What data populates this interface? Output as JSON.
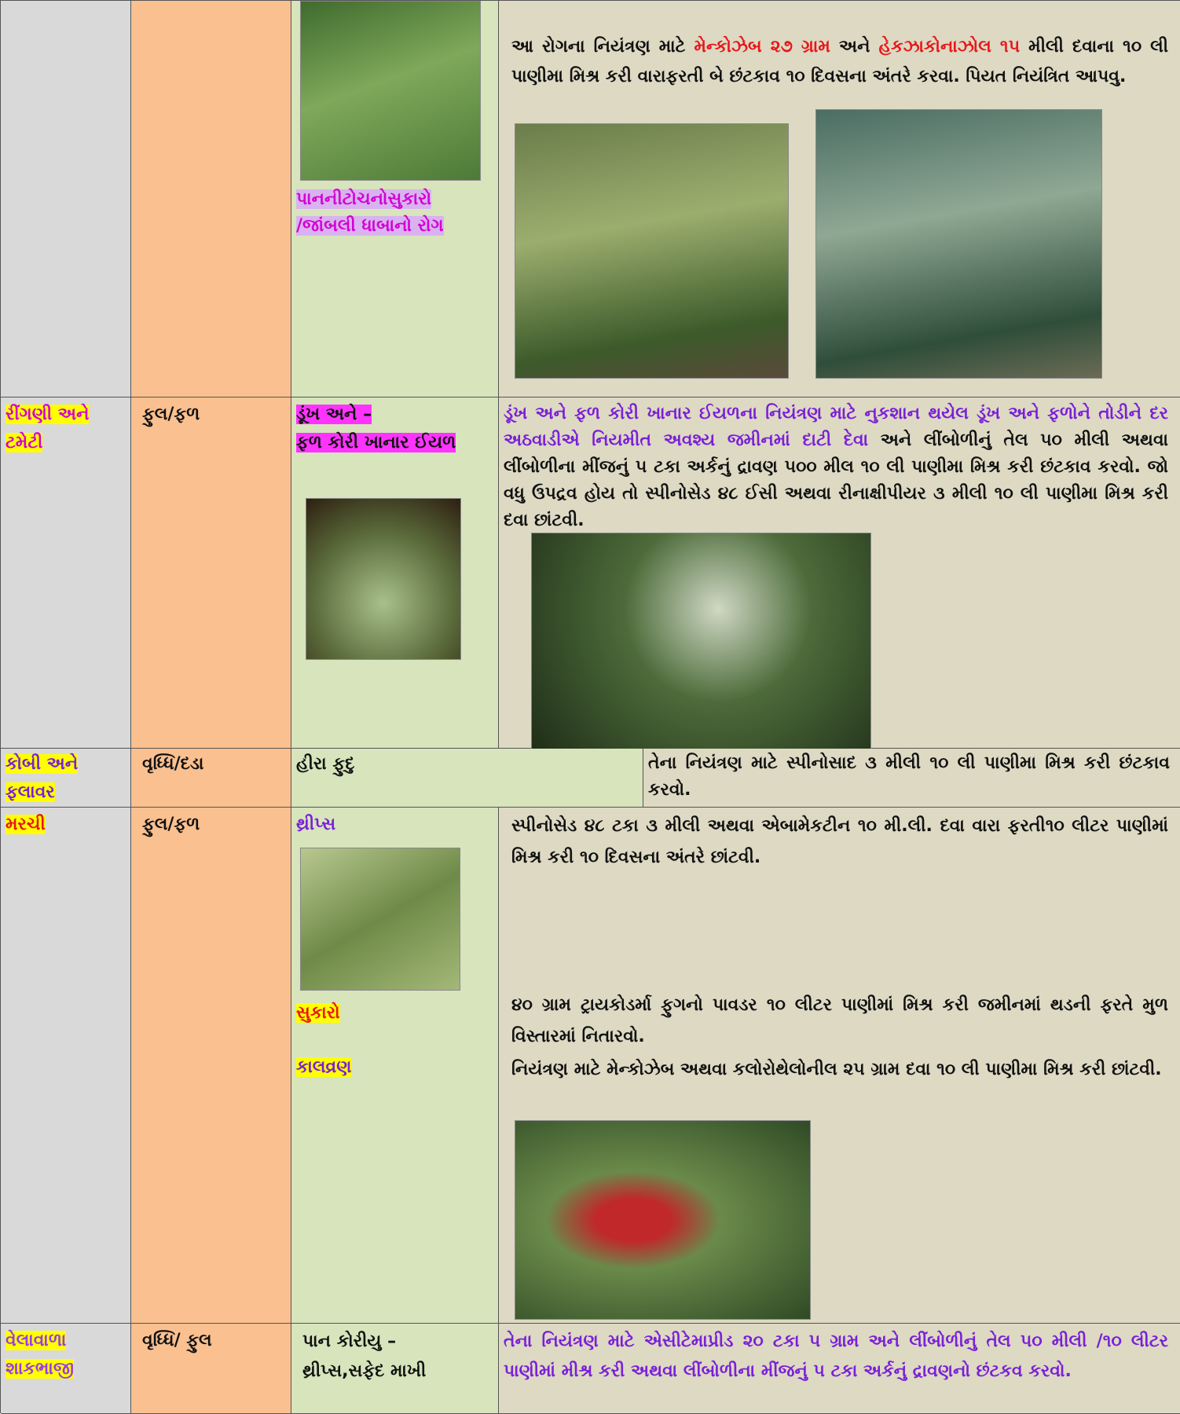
{
  "rows": [
    {
      "pest": [
        "પાનનીટોચનોસુકારો",
        "/જાંબલી ધાબાનો રોગ"
      ],
      "control": [
        [
          "આ રોગના નિયંત્રણ માટે ",
          "મેન્કોઝેબ ૨૭ ગ્રામ",
          " અને ",
          "હેકઝાકોનાઝોલ ૧૫",
          " મીલી  દવાના ૧૦ લી પાણીમા મિશ્ર કરી વારાફરતી બે છંટકાવ ૧૦ દિવસના  અંતરે કરવા. પિયત નિયંત્રિત આપવુ."
        ]
      ]
    },
    {
      "crop": "રીંગણી અને ટમેટી",
      "stage": "ફુલ/ફળ",
      "pest": [
        "ડૂંખ અને   –",
        "ફળ કોરી ખાનાર ઈયળ"
      ],
      "control": [
        [
          "ડૂંખ અને  ફળ કોરી ખાનાર ઈયળના નિયંત્રણ માટે નુકશાન થયેલ ડૂંખ અને  ફળોને તોડીને દર અઠવાડીએ નિયમીત અવશ્ય જમીનમાં દાટી દેવા",
          " અને લીંબોળીનું તેલ ૫૦ મીલી અથવા લીંબોળીના મીંજનું ૫ ટકા અર્કનું  દ્રાવણ ૫૦૦ મીલ ૧૦ લી પાણીમા મિશ્ર કરી છંટકાવ કરવો. જો વધુ ઉપદ્રવ હોય તો સ્પીનોસેડ ૪૮  ઈસી  અથવા રીનાક્ષીપીયર ૩ મીલી ૧૦ લી પાણીમા મિશ્ર કરી  દવા છાંટવી."
        ]
      ]
    },
    {
      "crop": "કોબી અને ફલાવર",
      "stage": "વૃધ્ધિ/દડા",
      "pest": [
        "હીરા ફુદુ"
      ],
      "control": [
        [
          "તેના  નિયંત્રણ માટે સ્પીનોસાદ ૩ મીલી ૧૦ લી પાણીમા મિશ્ર કરી છંટકાવ કરવો."
        ]
      ]
    },
    {
      "crop": "મરચી",
      "stage": "ફુલ/ફળ",
      "pest": [
        "થ્રીપ્સ",
        "સુકારો",
        "કાલવ્રણ"
      ],
      "control": [
        [
          "સ્પીનોસેડ ૪૮ ટકા  ૩ મીલી અથવા એબામેકટીન ૧૦ મી.લી. દવા વારા ફરતી૧૦ લીટર પાણીમાં મિશ્ર કરી  ૧૦ દિવસના અંતરે છાંટવી."
        ],
        [
          "૪૦ ગ્રામ ટ્રાયકોડર્મા ફુગનો પાવડર  ૧૦ લીટર પાણીમાં મિશ્ર કરી  જમીનમાં થડની ફરતે મુળ વિસ્તારમાં નિતારવો."
        ],
        [
          "નિયંત્રણ માટે મેન્કોઝેબ અથવા કલોરોથેલોનીલ ૨૫ ગ્રામ  દવા ૧૦ લી પાણીમા મિશ્ર કરી  છાંટવી."
        ]
      ]
    },
    {
      "crop": "વેલાવાળા શાકભાજી",
      "stage": "વૃધ્ધિ/ ફુલ",
      "pest": [
        "પાન  કોરીયુ  –",
        "થ્રીપ્સ,સફેદ માખી"
      ],
      "control": [
        [
          "તેના નિયંત્રણ માટે એસીટેમાપ્રીડ ૨૦ ટકા ૫ ગ્રામ અને લીંબોળીનું તેલ ૫૦ મીલી /૧૦ લીટર પાણીમાં મીશ્ર કરી અથવા લીંબોળીના મીંજનું ૫ ટકા અર્કનું  દ્રાવણનો  છંટકવ કરવો."
        ]
      ]
    }
  ]
}
